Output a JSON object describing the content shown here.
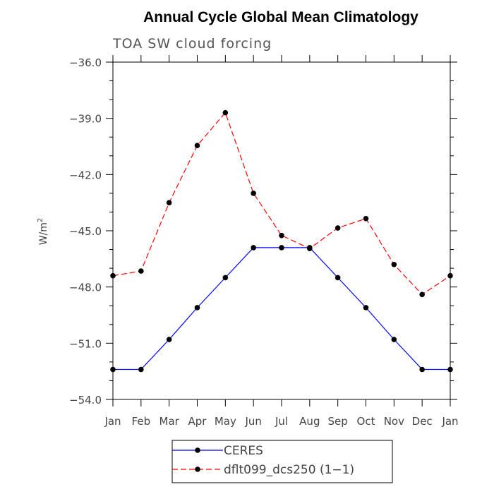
{
  "chart_data": {
    "type": "line",
    "title": "Annual Cycle Global Mean Climatology",
    "subtitle": "TOA SW cloud forcing",
    "ylabel": "W/m",
    "ylabel_superscript": "2",
    "xlabel": "",
    "categories": [
      "Jan",
      "Feb",
      "Mar",
      "Apr",
      "May",
      "Jun",
      "Jul",
      "Aug",
      "Sep",
      "Oct",
      "Nov",
      "Dec",
      "Jan"
    ],
    "ylim": [
      -54.0,
      -36.0
    ],
    "yticks": [
      -36.0,
      -39.0,
      -42.0,
      -45.0,
      -48.0,
      -51.0,
      -54.0
    ],
    "ytick_labels": [
      "−36.0",
      "−39.0",
      "−42.0",
      "−45.0",
      "−48.0",
      "−51.0",
      "−54.0"
    ],
    "grid": false,
    "legend_position": "bottom-center",
    "series": [
      {
        "name": "CERES",
        "color": "#0000ff",
        "dash": "solid",
        "values": [
          -52.4,
          -52.4,
          -50.8,
          -49.1,
          -47.5,
          -45.9,
          -45.9,
          -45.9,
          -47.5,
          -49.1,
          -50.8,
          -52.4,
          -52.4
        ]
      },
      {
        "name": "dflt099_dcs250 (1−1)",
        "color": "#ff0000",
        "dash": "dashed",
        "values": [
          -47.4,
          -47.15,
          -43.5,
          -40.45,
          -38.7,
          -43.0,
          -45.25,
          -45.95,
          -44.85,
          -44.35,
          -46.8,
          -48.4,
          -47.4
        ]
      }
    ]
  }
}
